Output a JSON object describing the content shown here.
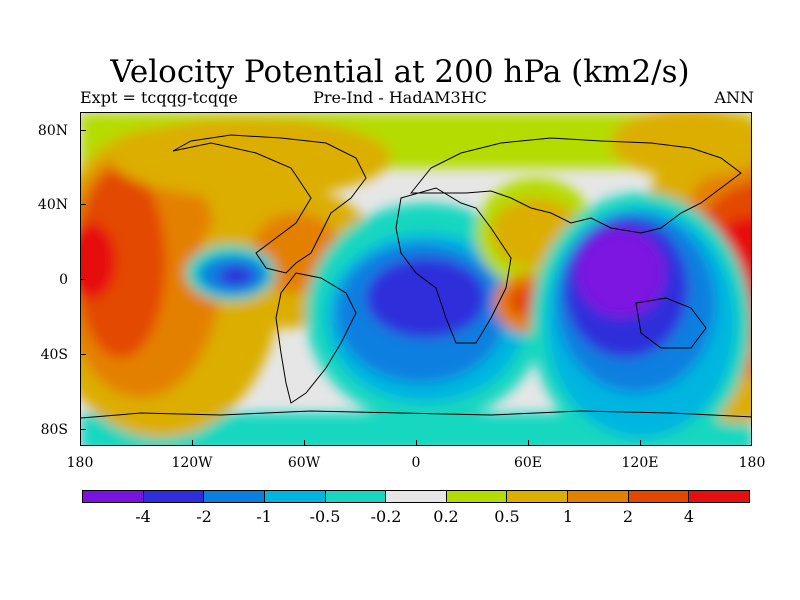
{
  "title": "Velocity Potential at 200 hPa (km2/s)",
  "subtitle_left": "Expt = tcqqg-tcqqe",
  "subtitle_center": "Pre-Ind - HadAM3HC",
  "subtitle_right": "ANN",
  "lat_labels": [
    "80N",
    "40N",
    "0",
    "40S",
    "80S"
  ],
  "lon_labels": [
    "180",
    "120W",
    "60W",
    "0",
    "60E",
    "120E",
    "180"
  ],
  "colorbar": {
    "colors": [
      "#7b13e0",
      "#2e2edb",
      "#0b7fe0",
      "#00b5e0",
      "#18d7c0",
      "#e6e6e6",
      "#b5dc00",
      "#dcae00",
      "#e48000",
      "#e34800",
      "#e60f0f"
    ],
    "labels": [
      "-4",
      "-2",
      "-1",
      "-0.5",
      "-0.2",
      "0.2",
      "0.5",
      "1",
      "2",
      "4"
    ]
  },
  "map_background_color": "#e6e6e6"
}
